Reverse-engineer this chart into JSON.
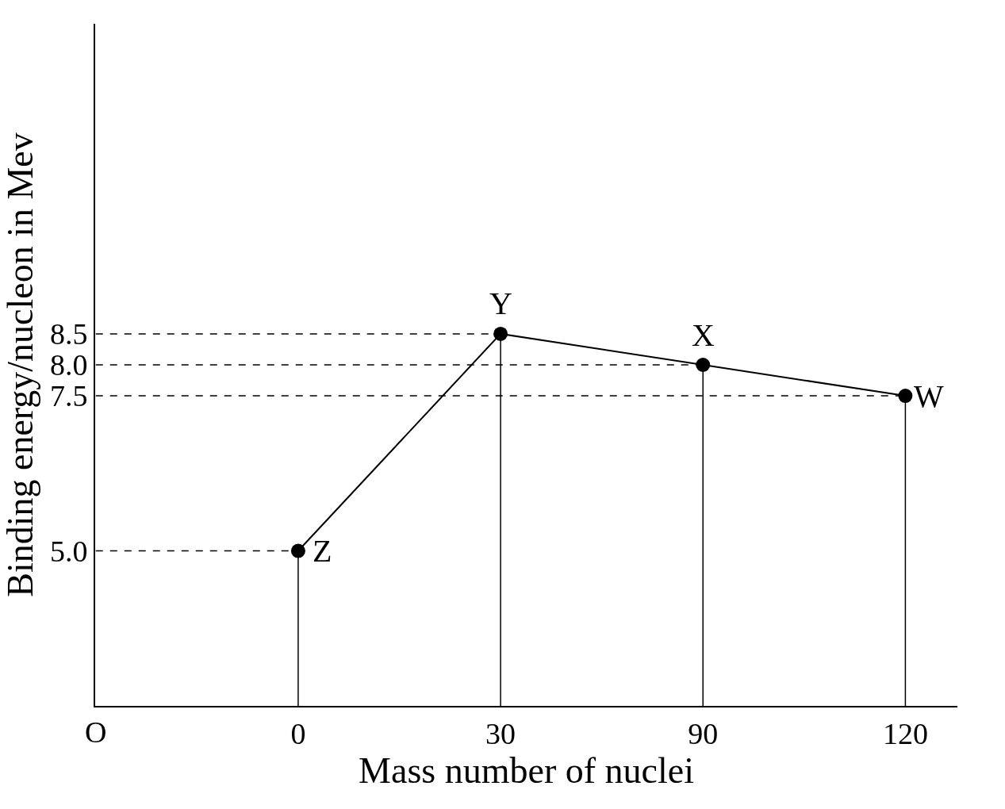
{
  "chart_data": {
    "type": "line",
    "xlabel": "Mass number of nuclei",
    "ylabel": "Binding energy/nucleon in Mev",
    "categories": [
      "0",
      "30",
      "90",
      "120"
    ],
    "series": [
      {
        "color": "#000000",
        "values": [
          5.0,
          8.5,
          8.0,
          7.5
        ]
      }
    ],
    "ylim": [
      2.5,
      13.5
    ],
    "yticks": [
      {
        "value": 5.0,
        "label": "5.0"
      },
      7.5,
      {
        "value": 8.0,
        "label": "8.0"
      },
      8.5
    ],
    "ref_lines": [
      {
        "axis": "y",
        "value": 8.5,
        "line_style": "dashed",
        "color": "#000000"
      },
      {
        "axis": "y",
        "value": 8.0,
        "line_style": "dashed",
        "color": "#000000"
      },
      {
        "axis": "y",
        "value": 7.5,
        "line_style": "dashed",
        "color": "#000000"
      },
      {
        "axis": "y",
        "value": 5.0,
        "line_style": "dashed",
        "color": "#000000"
      },
      {
        "axis": "x",
        "value": "0",
        "line_style": "solid",
        "color": "#000000"
      },
      {
        "axis": "x",
        "value": "30",
        "line_style": "solid",
        "color": "#000000"
      },
      {
        "axis": "x",
        "value": "90",
        "line_style": "solid",
        "color": "#000000"
      },
      {
        "axis": "x",
        "value": "120",
        "line_style": "solid",
        "color": "#000000"
      }
    ],
    "annotations": [
      {
        "text": "Z",
        "x": "0",
        "y": 5.0
      },
      {
        "text": "Y",
        "x": "30",
        "y": 8.5
      },
      {
        "text": "X",
        "x": "90",
        "y": 8.0
      },
      {
        "text": "W",
        "x": "120",
        "y": 7.5
      },
      "O"
    ],
    "marker": "circle",
    "line_style": "solid"
  }
}
